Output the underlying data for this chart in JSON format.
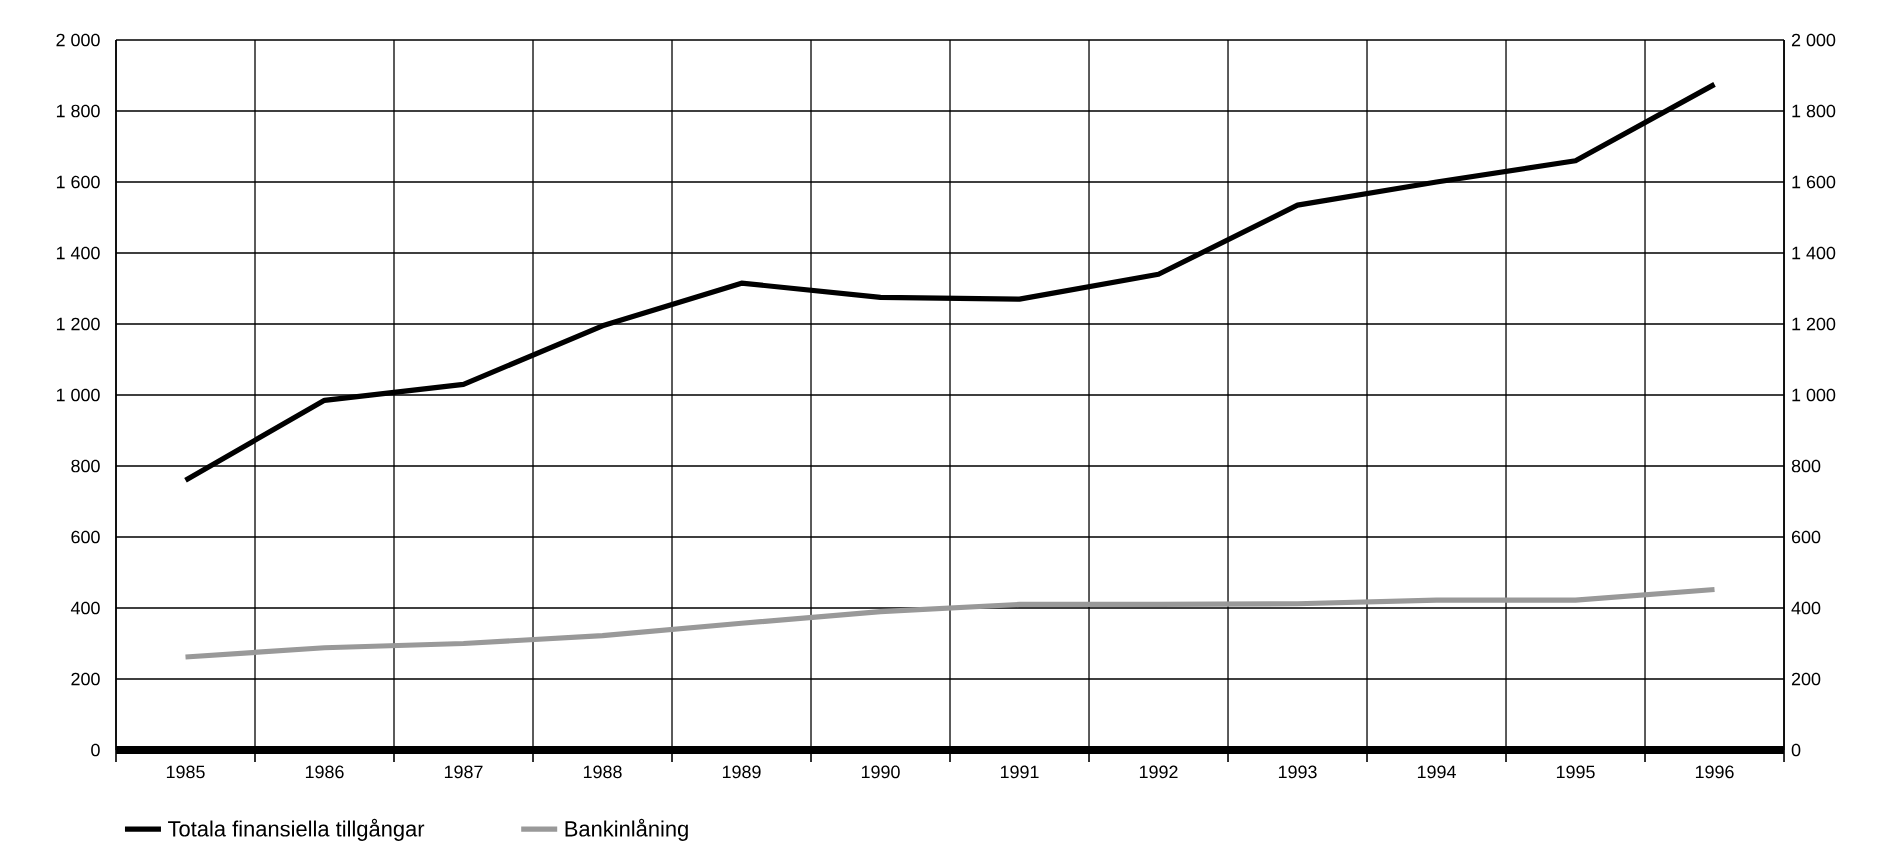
{
  "chart_data": {
    "type": "line",
    "categories": [
      "1985",
      "1986",
      "1987",
      "1988",
      "1989",
      "1990",
      "1991",
      "1992",
      "1993",
      "1994",
      "1995",
      "1996"
    ],
    "series": [
      {
        "name": "Totala finansiella tillgångar",
        "color": "#000000",
        "values": [
          760,
          985,
          1030,
          1195,
          1315,
          1275,
          1270,
          1340,
          1535,
          1600,
          1660,
          1875
        ]
      },
      {
        "name": "Bankinlåning",
        "color": "#999999",
        "values": [
          262,
          288,
          300,
          322,
          357,
          390,
          410,
          410,
          412,
          422,
          422,
          452
        ]
      }
    ],
    "ylim": [
      0,
      2000
    ],
    "yticks": [
      0,
      200,
      400,
      600,
      800,
      {
        "value": 1000,
        "label": "1 000"
      },
      {
        "value": 1200,
        "label": "1 200"
      },
      {
        "value": 1400,
        "label": "1 400"
      },
      {
        "value": 1600,
        "label": "1 600"
      },
      {
        "value": 1800,
        "label": "1 800"
      },
      {
        "value": 2000,
        "label": "2 000"
      }
    ],
    "y2lim": [
      0,
      2000
    ],
    "y2ticks": [
      0,
      200,
      400,
      600,
      800,
      {
        "value": 1000,
        "label": "1 000"
      },
      {
        "value": 1200,
        "label": "1 200"
      },
      {
        "value": 1400,
        "label": "1 400"
      },
      {
        "value": 1600,
        "label": "1 600"
      },
      {
        "value": 1800,
        "label": "1 800"
      },
      {
        "value": 2000,
        "label": "2 000"
      }
    ],
    "grid": true,
    "legend": "bottom",
    "marker": "none",
    "line_style": "solid"
  }
}
